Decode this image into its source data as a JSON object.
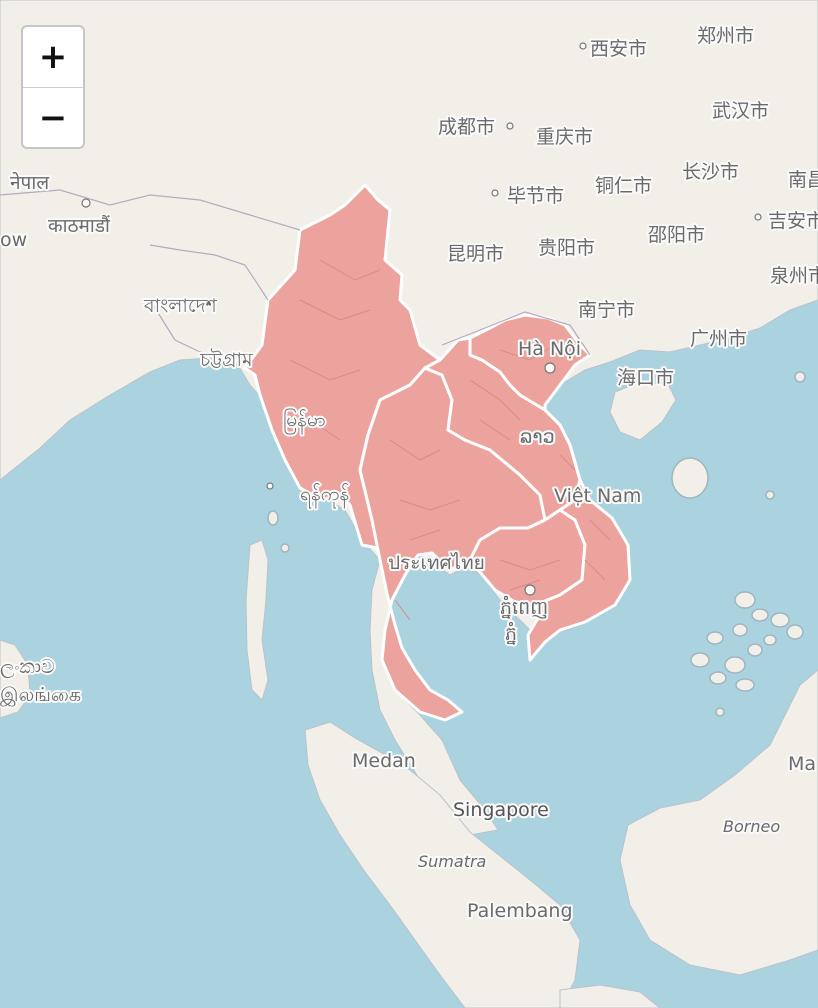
{
  "zoom_control": {
    "zoom_in": "+",
    "zoom_out": "−"
  },
  "colors": {
    "water": "#aad3df",
    "land": "#f2efe9",
    "highlight": "#eda39d",
    "border": "#ffffff"
  },
  "highlighted_countries": [
    "Myanmar",
    "Thailand",
    "Laos",
    "Vietnam",
    "Cambodia"
  ],
  "labels": {
    "xian": "西安市",
    "zhengzhou": "郑州市",
    "chengdu": "成都市",
    "chongqing": "重庆市",
    "wuhan": "武汉市",
    "nepal": "नेपाल",
    "bijie": "毕节市",
    "tongren": "铜仁市",
    "changsha": "长沙市",
    "nanchang": "南昌",
    "kathmandu": "काठमाडौं",
    "ow": "ow",
    "kunming": "昆明市",
    "guiyang": "贵阳市",
    "shaoyang": "邵阳市",
    "jian": "吉安市",
    "quanzhou": "泉州市",
    "bangladesh": "বাংলাদেশ",
    "nanning": "南宁市",
    "guangzhou": "广州市",
    "chittagong": "চট্টগ্রাম",
    "hanoi": "Hà Nội",
    "haikou": "海口市",
    "myanmar": "မြန်မာ",
    "laos": "ລາວ",
    "viet_nam": "Việt Nam",
    "yangon": "ရန်ကုန်",
    "thailand": "ประเทศไทย",
    "phnom_penh_1": "ភ្នំពេញ",
    "phnom_penh_2": "ភ្នំ",
    "srilanka_1": "ලංකාව",
    "srilanka_2": "இலங்கை",
    "medan": "Medan",
    "singapore": "Singapore",
    "sumatra": "Sumatra",
    "borneo": "Borneo",
    "ma": "Ma",
    "palembang": "Palembang"
  }
}
